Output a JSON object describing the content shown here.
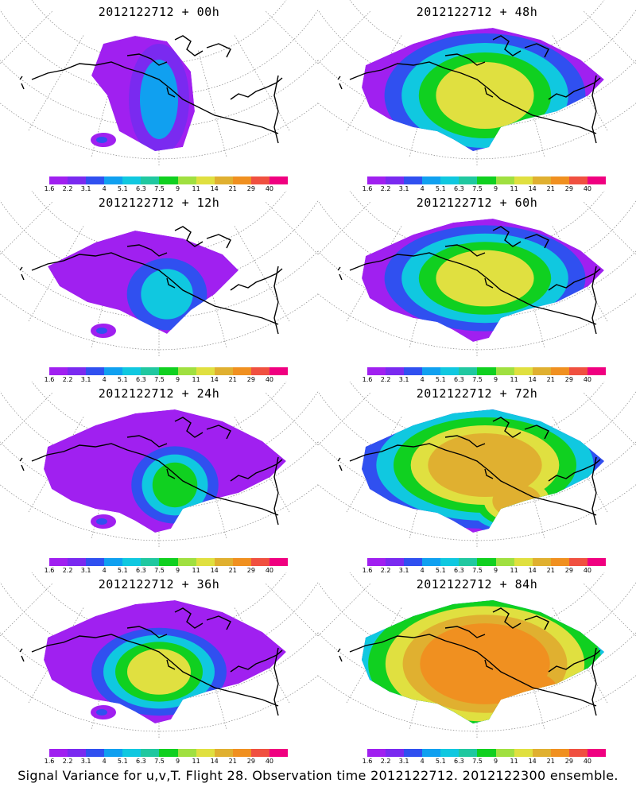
{
  "panels": [
    {
      "title": "2012122712 + 00h"
    },
    {
      "title": "2012122712 + 48h"
    },
    {
      "title": "2012122712 + 12h"
    },
    {
      "title": "2012122712 + 60h"
    },
    {
      "title": "2012122712 + 24h"
    },
    {
      "title": "2012122712 + 72h"
    },
    {
      "title": "2012122712 + 36h"
    },
    {
      "title": "2012122712 + 84h"
    }
  ],
  "colorbar": {
    "labels": [
      "1.6",
      "2.2",
      "3.1",
      "4",
      "5.1",
      "6.3",
      "7.5",
      "9",
      "11",
      "14",
      "21",
      "29",
      "40"
    ],
    "colors": [
      "#a020f0",
      "#7a2af0",
      "#3050f0",
      "#10a0f0",
      "#10c8e0",
      "#20c8a0",
      "#10d020",
      "#a0e040",
      "#e0e040",
      "#e0b030",
      "#f09020",
      "#f05040",
      "#f00080"
    ]
  },
  "caption": "Signal Variance for u,v,T. Flight 28. Observation time 2012122712. 2012122300 ensemble."
}
